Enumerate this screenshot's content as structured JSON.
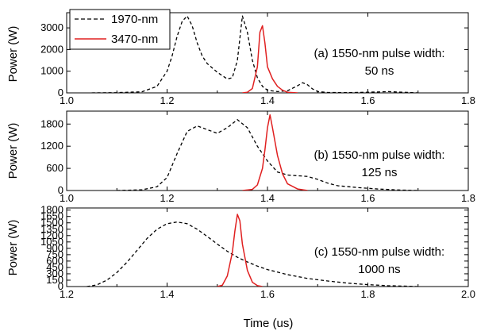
{
  "chart_data": [
    {
      "type": "line",
      "panel": "a",
      "annotation": [
        "(a) 1550-nm pulse width:",
        "50 ns"
      ],
      "ylabel": "Power (W)",
      "xlim": [
        1.0,
        1.8
      ],
      "ylim": [
        0,
        3700
      ],
      "xticks": [
        1.0,
        1.2,
        1.4,
        1.6,
        1.8
      ],
      "yticks": [
        0,
        1000,
        2000,
        3000
      ],
      "series": [
        {
          "name": "1970-nm",
          "color": "#000000",
          "dash": "dashed",
          "x": [
            1.05,
            1.1,
            1.15,
            1.18,
            1.2,
            1.21,
            1.22,
            1.23,
            1.24,
            1.25,
            1.26,
            1.27,
            1.28,
            1.3,
            1.32,
            1.33,
            1.34,
            1.35,
            1.36,
            1.37,
            1.38,
            1.39,
            1.4,
            1.42,
            1.44,
            1.46,
            1.47,
            1.48,
            1.49,
            1.5,
            1.52,
            1.56,
            1.6,
            1.64,
            1.7
          ],
          "y": [
            0,
            10,
            50,
            300,
            1000,
            1700,
            2600,
            3300,
            3550,
            3100,
            2300,
            1700,
            1350,
            950,
            640,
            700,
            1500,
            3550,
            2800,
            1500,
            700,
            300,
            120,
            60,
            100,
            330,
            470,
            370,
            180,
            60,
            20,
            10,
            30,
            60,
            0
          ]
        },
        {
          "name": "3470-nm",
          "color": "#e02020",
          "dash": "solid",
          "x": [
            1.35,
            1.36,
            1.37,
            1.38,
            1.385,
            1.39,
            1.395,
            1.4,
            1.41,
            1.42,
            1.43,
            1.44,
            1.46
          ],
          "y": [
            0,
            30,
            200,
            1200,
            2800,
            3100,
            2300,
            1200,
            650,
            300,
            120,
            30,
            0
          ]
        }
      ]
    },
    {
      "type": "line",
      "panel": "b",
      "annotation": [
        "(b) 1550-nm pulse width:",
        "125 ns"
      ],
      "ylabel": "Power (W)",
      "xlim": [
        1.0,
        1.8
      ],
      "ylim": [
        0,
        2150
      ],
      "xticks": [
        1.0,
        1.2,
        1.4,
        1.6,
        1.8
      ],
      "yticks": [
        0,
        600,
        1200,
        1800
      ],
      "series": [
        {
          "name": "1970-nm",
          "color": "#000000",
          "dash": "dashed",
          "x": [
            1.1,
            1.15,
            1.18,
            1.2,
            1.22,
            1.24,
            1.26,
            1.28,
            1.3,
            1.32,
            1.34,
            1.36,
            1.38,
            1.4,
            1.42,
            1.44,
            1.46,
            1.48,
            1.5,
            1.52,
            1.54,
            1.58,
            1.62,
            1.66,
            1.7
          ],
          "y": [
            0,
            20,
            100,
            350,
            1000,
            1600,
            1750,
            1650,
            1550,
            1700,
            1920,
            1700,
            1200,
            800,
            500,
            420,
            400,
            380,
            300,
            200,
            130,
            80,
            40,
            15,
            0
          ]
        },
        {
          "name": "3470-nm",
          "color": "#e02020",
          "dash": "solid",
          "x": [
            1.35,
            1.37,
            1.38,
            1.39,
            1.395,
            1.4,
            1.405,
            1.41,
            1.42,
            1.43,
            1.44,
            1.46,
            1.48
          ],
          "y": [
            0,
            30,
            150,
            600,
            1100,
            1700,
            2050,
            1700,
            950,
            450,
            180,
            40,
            0
          ]
        }
      ]
    },
    {
      "type": "line",
      "panel": "c",
      "annotation": [
        "(c) 1550-nm pulse width:",
        "1000 ns"
      ],
      "ylabel": "Power (W)",
      "xlabel": "Time (us)",
      "xlim": [
        1.2,
        2.0
      ],
      "ylim": [
        0,
        1850
      ],
      "xticks": [
        1.2,
        1.4,
        1.6,
        1.8,
        2.0
      ],
      "yticks": [
        0,
        150,
        300,
        450,
        600,
        750,
        900,
        1050,
        1200,
        1350,
        1500,
        1650,
        1800
      ],
      "series": [
        {
          "name": "1970-nm",
          "color": "#000000",
          "dash": "dashed",
          "x": [
            1.24,
            1.26,
            1.28,
            1.3,
            1.32,
            1.34,
            1.36,
            1.38,
            1.4,
            1.42,
            1.44,
            1.46,
            1.48,
            1.5,
            1.52,
            1.54,
            1.56,
            1.58,
            1.6,
            1.64,
            1.68,
            1.72,
            1.76,
            1.8,
            1.84,
            1.88,
            1.9
          ],
          "y": [
            0,
            40,
            150,
            330,
            570,
            850,
            1130,
            1350,
            1480,
            1520,
            1480,
            1350,
            1180,
            1000,
            830,
            690,
            580,
            480,
            400,
            280,
            190,
            130,
            80,
            45,
            20,
            8,
            0
          ]
        },
        {
          "name": "3470-nm",
          "color": "#e02020",
          "dash": "solid",
          "x": [
            1.5,
            1.51,
            1.52,
            1.53,
            1.535,
            1.54,
            1.545,
            1.55,
            1.56,
            1.57,
            1.58,
            1.59
          ],
          "y": [
            0,
            30,
            250,
            800,
            1300,
            1700,
            1550,
            1000,
            380,
            100,
            20,
            0
          ]
        }
      ]
    }
  ],
  "legend": {
    "items": [
      {
        "label": "1970-nm",
        "color": "#000000",
        "dash": "dashed"
      },
      {
        "label": "3470-nm",
        "color": "#e02020",
        "dash": "solid"
      }
    ]
  },
  "ylabel_text": "Power (W)",
  "xlabel_text": "Time (us)"
}
